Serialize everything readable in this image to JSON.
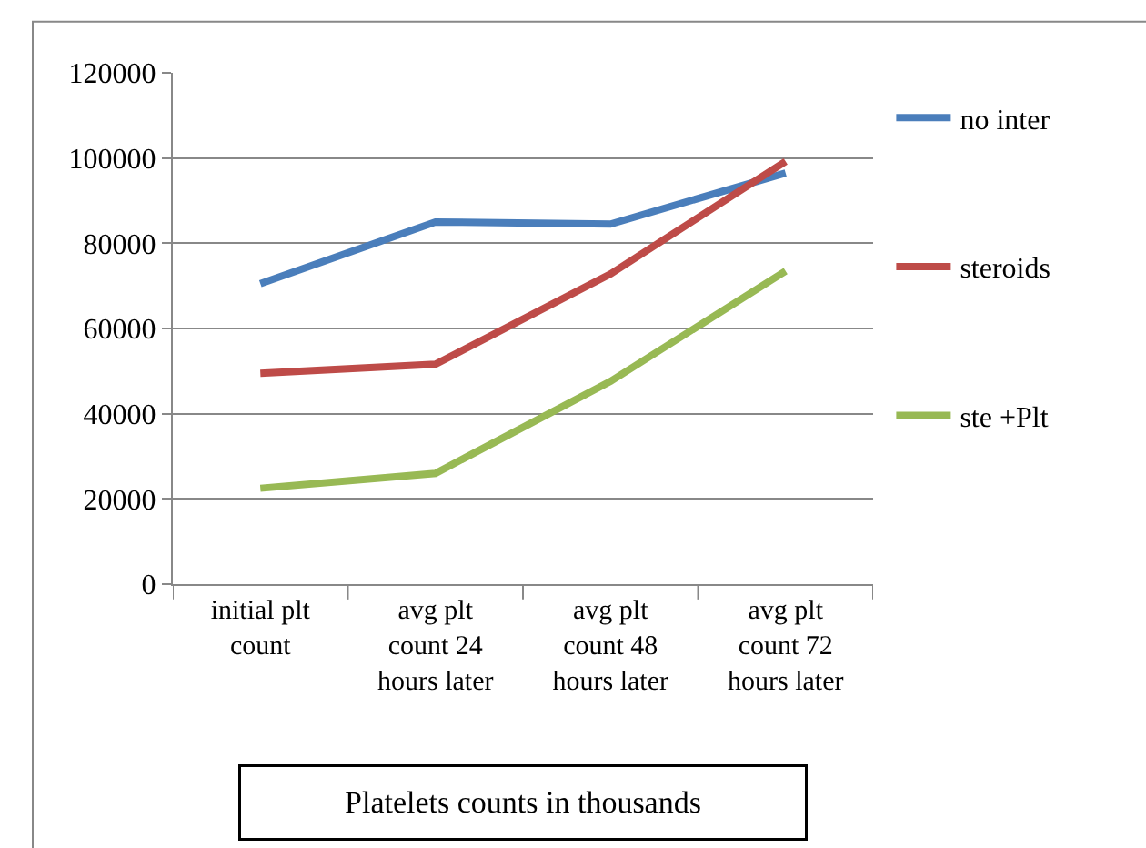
{
  "chart_data": {
    "type": "line",
    "xlabel": "Platelets counts in thousands",
    "categories": [
      "initial plt count",
      "avg plt count 24 hours later",
      "avg plt count 48 hours later",
      "avg plt count 72 hours later"
    ],
    "series": [
      {
        "name": "no inter",
        "color": "#4a7ebb",
        "values": [
          70500,
          85000,
          84500,
          96500
        ]
      },
      {
        "name": "steroids",
        "color": "#be4b48",
        "values": [
          49500,
          51600,
          72800,
          99200
        ]
      },
      {
        "name": "ste +Plt",
        "color": "#98b954",
        "values": [
          22500,
          26000,
          47600,
          73500
        ]
      }
    ],
    "ylim": [
      0,
      120000
    ],
    "yticks": [
      0,
      20000,
      40000,
      60000,
      80000,
      100000,
      120000
    ],
    "grid": "y",
    "legend": "right",
    "marker": "none",
    "line_style": "solid"
  }
}
